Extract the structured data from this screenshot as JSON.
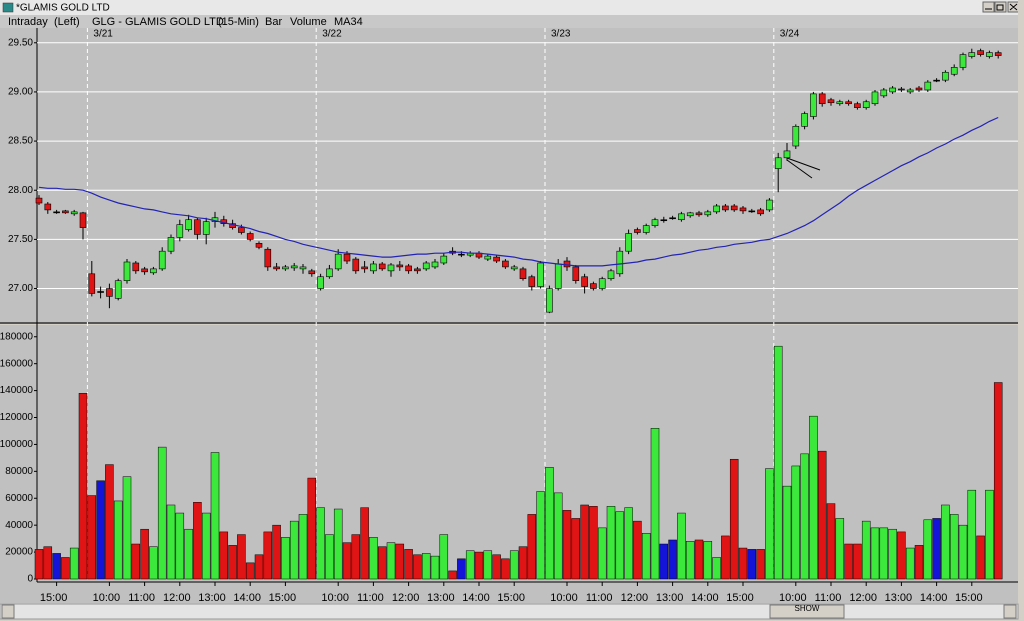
{
  "window_title": "*GLAMIS GOLD LTD",
  "header": [
    "Intraday",
    "(Left)",
    "GLG - GLAMIS GOLD LTD",
    "(15-Min)",
    "Bar"
  ],
  "scrollbar_label": "SHOW",
  "chart_data": [
    {
      "type": "candlestick",
      "up_color": "#3ce83c",
      "down_color": "#e01414",
      "grid": true,
      "ylim": [
        26.68,
        29.63
      ],
      "yticks": [
        {
          "value": 27,
          "label": "27.00"
        },
        {
          "value": 27.5,
          "label": "27.50"
        },
        {
          "value": 28,
          "label": "28.00"
        },
        {
          "value": 28.5,
          "label": "28.50"
        },
        {
          "value": 29,
          "label": "29.00"
        },
        {
          "value": 29.5,
          "label": "29.50"
        }
      ],
      "day_labels": [
        null,
        null,
        null,
        null,
        null,
        null,
        "3/21",
        null,
        null,
        null,
        null,
        null,
        null,
        null,
        null,
        null,
        null,
        null,
        null,
        null,
        null,
        null,
        null,
        null,
        null,
        null,
        null,
        null,
        null,
        null,
        null,
        null,
        "3/22",
        null,
        null,
        null,
        null,
        null,
        null,
        null,
        null,
        null,
        null,
        null,
        null,
        null,
        null,
        null,
        null,
        null,
        null,
        null,
        null,
        null,
        null,
        null,
        null,
        null,
        "3/23",
        null,
        null,
        null,
        null,
        null,
        null,
        null,
        null,
        null,
        null,
        null,
        null,
        null,
        null,
        null,
        null,
        null,
        null,
        null,
        null,
        null,
        null,
        null,
        null,
        null,
        "3/24",
        null,
        null,
        null,
        null,
        null,
        null,
        null,
        null,
        null,
        null,
        null,
        null,
        null,
        null,
        null,
        null,
        null,
        null,
        null,
        null,
        null,
        null,
        null,
        null,
        null
      ],
      "open": [
        27.92,
        27.86,
        27.78,
        27.79,
        27.76,
        27.77,
        27.15,
        26.97,
        27.0,
        26.9,
        27.08,
        27.26,
        27.2,
        27.16,
        27.2,
        27.38,
        27.52,
        27.6,
        27.7,
        27.55,
        27.68,
        27.7,
        27.66,
        27.62,
        27.56,
        27.46,
        27.4,
        27.22,
        27.2,
        27.21,
        27.2,
        27.18,
        27.0,
        27.12,
        27.2,
        27.35,
        27.3,
        27.22,
        27.18,
        27.25,
        27.18,
        27.24,
        27.23,
        27.2,
        27.2,
        27.22,
        27.26,
        27.38,
        27.35,
        27.34,
        27.36,
        27.3,
        27.32,
        27.28,
        27.2,
        27.2,
        27.12,
        27.02,
        26.76,
        27.0,
        27.28,
        27.22,
        27.12,
        27.05,
        27.0,
        27.1,
        27.15,
        27.38,
        27.6,
        27.57,
        27.64,
        27.7,
        27.72,
        27.7,
        27.74,
        27.77,
        27.75,
        27.78,
        27.84,
        27.84,
        27.82,
        27.79,
        27.8,
        27.8,
        28.22,
        28.33,
        28.45,
        28.65,
        28.75,
        28.98,
        28.92,
        28.88,
        28.9,
        28.88,
        28.84,
        28.88,
        28.96,
        29.0,
        29.03,
        29.0,
        29.04,
        29.02,
        29.12,
        29.12,
        29.18,
        29.25,
        29.36,
        29.42,
        29.36,
        29.4
      ],
      "high": [
        27.95,
        27.88,
        27.8,
        27.8,
        27.8,
        27.78,
        27.28,
        27.02,
        27.05,
        27.1,
        27.3,
        27.28,
        27.22,
        27.22,
        27.42,
        27.55,
        27.7,
        27.75,
        27.72,
        27.72,
        27.78,
        27.74,
        27.7,
        27.65,
        27.58,
        27.48,
        27.42,
        27.26,
        27.24,
        27.26,
        27.25,
        27.2,
        27.15,
        27.24,
        27.4,
        27.38,
        27.32,
        27.28,
        27.28,
        27.27,
        27.26,
        27.28,
        27.25,
        27.22,
        27.28,
        27.3,
        27.36,
        27.42,
        27.38,
        27.38,
        27.38,
        27.35,
        27.34,
        27.3,
        27.24,
        27.22,
        27.14,
        27.28,
        27.03,
        27.3,
        27.32,
        27.24,
        27.15,
        27.07,
        27.12,
        27.2,
        27.42,
        27.6,
        27.62,
        27.66,
        27.72,
        27.73,
        27.74,
        27.78,
        27.78,
        27.79,
        27.8,
        27.86,
        27.86,
        27.86,
        27.84,
        27.81,
        27.82,
        27.92,
        28.38,
        28.48,
        28.67,
        28.8,
        29.0,
        29.0,
        28.94,
        28.92,
        28.92,
        28.9,
        28.92,
        29.02,
        29.04,
        29.06,
        29.05,
        29.04,
        29.06,
        29.12,
        29.14,
        29.22,
        29.28,
        29.4,
        29.44,
        29.44,
        29.42,
        29.42
      ],
      "low": [
        27.85,
        27.76,
        27.76,
        27.76,
        27.74,
        27.5,
        26.92,
        26.9,
        26.8,
        26.88,
        27.05,
        27.15,
        27.14,
        27.14,
        27.18,
        27.35,
        27.48,
        27.58,
        27.5,
        27.45,
        27.62,
        27.63,
        27.6,
        27.55,
        27.48,
        27.4,
        27.18,
        27.18,
        27.18,
        27.18,
        27.15,
        27.12,
        26.98,
        27.1,
        27.18,
        27.25,
        27.15,
        27.16,
        27.15,
        27.18,
        27.12,
        27.18,
        27.15,
        27.15,
        27.18,
        27.2,
        27.24,
        27.34,
        27.32,
        27.32,
        27.3,
        27.28,
        27.26,
        27.2,
        27.18,
        27.08,
        26.98,
        27.0,
        26.75,
        26.98,
        27.18,
        27.05,
        26.95,
        26.98,
        26.98,
        27.08,
        27.12,
        27.35,
        27.55,
        27.55,
        27.62,
        27.67,
        27.7,
        27.68,
        27.72,
        27.73,
        27.73,
        27.76,
        27.78,
        27.78,
        27.76,
        27.77,
        27.74,
        27.78,
        27.98,
        28.3,
        28.42,
        28.62,
        28.72,
        28.85,
        28.86,
        28.86,
        28.86,
        28.82,
        28.82,
        28.86,
        28.94,
        28.98,
        29.0,
        28.98,
        29.0,
        29.0,
        29.1,
        29.1,
        29.16,
        29.22,
        29.34,
        29.36,
        29.34,
        29.34
      ],
      "close": [
        27.87,
        27.8,
        27.78,
        27.77,
        27.78,
        27.62,
        26.95,
        26.97,
        26.92,
        27.08,
        27.27,
        27.18,
        27.17,
        27.2,
        27.38,
        27.52,
        27.65,
        27.7,
        27.55,
        27.68,
        27.72,
        27.66,
        27.62,
        27.57,
        27.5,
        27.42,
        27.22,
        27.2,
        27.22,
        27.23,
        27.22,
        27.15,
        27.12,
        27.2,
        27.35,
        27.28,
        27.18,
        27.2,
        27.25,
        27.2,
        27.24,
        27.22,
        27.18,
        27.18,
        27.26,
        27.27,
        27.33,
        27.36,
        27.35,
        27.36,
        27.32,
        27.33,
        27.28,
        27.22,
        27.22,
        27.1,
        27.02,
        27.26,
        27.0,
        27.25,
        27.22,
        27.08,
        27.02,
        27.0,
        27.1,
        27.18,
        27.38,
        27.56,
        27.57,
        27.64,
        27.7,
        27.7,
        27.72,
        27.76,
        27.77,
        27.75,
        27.78,
        27.84,
        27.8,
        27.8,
        27.79,
        27.79,
        27.76,
        27.9,
        28.33,
        28.4,
        28.65,
        28.78,
        28.98,
        28.88,
        28.89,
        28.9,
        28.88,
        28.84,
        28.9,
        29.0,
        29.02,
        29.04,
        29.02,
        29.02,
        29.02,
        29.1,
        29.12,
        29.2,
        29.25,
        29.38,
        29.4,
        29.38,
        29.4,
        29.37
      ],
      "series": [
        {
          "name": "MA34",
          "color": "#2323b4",
          "values": [
            28.03,
            28.02,
            28.02,
            28.01,
            28.01,
            28.0,
            27.97,
            27.93,
            27.9,
            27.87,
            27.85,
            27.83,
            27.81,
            27.8,
            27.78,
            27.76,
            27.75,
            27.74,
            27.72,
            27.71,
            27.69,
            27.67,
            27.65,
            27.63,
            27.61,
            27.58,
            27.56,
            27.53,
            27.5,
            27.48,
            27.45,
            27.43,
            27.41,
            27.39,
            27.37,
            27.36,
            27.35,
            27.34,
            27.33,
            27.32,
            27.32,
            27.33,
            27.34,
            27.35,
            27.35,
            27.36,
            27.36,
            27.37,
            27.37,
            27.36,
            27.36,
            27.35,
            27.34,
            27.33,
            27.32,
            27.3,
            27.29,
            27.27,
            27.26,
            27.25,
            27.24,
            27.23,
            27.23,
            27.23,
            27.23,
            27.24,
            27.25,
            27.26,
            27.27,
            27.29,
            27.3,
            27.32,
            27.34,
            27.35,
            27.37,
            27.39,
            27.4,
            27.42,
            27.43,
            27.45,
            27.46,
            27.47,
            27.49,
            27.5,
            27.53,
            27.56,
            27.6,
            27.64,
            27.69,
            27.75,
            27.81,
            27.87,
            27.94,
            28.0,
            28.05,
            28.1,
            28.15,
            28.2,
            28.25,
            28.29,
            28.34,
            28.38,
            28.43,
            28.47,
            28.52,
            28.56,
            28.61,
            28.65,
            28.7,
            28.74
          ]
        }
      ]
    },
    {
      "type": "bar",
      "up_color": "#3ce83c",
      "down_color": "#e01414",
      "flat_color": "#1414d8",
      "ylim": [
        0,
        188000
      ],
      "yticks": [
        0,
        20000,
        40000,
        60000,
        80000,
        100000,
        120000,
        140000,
        160000,
        180000
      ],
      "categories": [
        null,
        null,
        "15:00",
        null,
        null,
        null,
        null,
        null,
        "10:00",
        null,
        null,
        null,
        "11:00",
        null,
        null,
        null,
        "12:00",
        null,
        null,
        null,
        "13:00",
        null,
        null,
        null,
        "14:00",
        null,
        null,
        null,
        "15:00",
        null,
        null,
        null,
        null,
        null,
        "10:00",
        null,
        null,
        null,
        "11:00",
        null,
        null,
        null,
        "12:00",
        null,
        null,
        null,
        "13:00",
        null,
        null,
        null,
        "14:00",
        null,
        null,
        null,
        "15:00",
        null,
        null,
        null,
        null,
        null,
        "10:00",
        null,
        null,
        null,
        "11:00",
        null,
        null,
        null,
        "12:00",
        null,
        null,
        null,
        "13:00",
        null,
        null,
        null,
        "14:00",
        null,
        null,
        null,
        "15:00",
        null,
        null,
        null,
        null,
        null,
        "10:00",
        null,
        null,
        null,
        "11:00",
        null,
        null,
        null,
        "12:00",
        null,
        null,
        null,
        "13:00",
        null,
        null,
        null,
        "14:00",
        null,
        null,
        null,
        "15:00",
        null,
        null,
        null
      ],
      "series": [
        {
          "name": "Volume",
          "values": [
            22000,
            24000,
            19000,
            16000,
            23000,
            138000,
            62000,
            73000,
            85000,
            58000,
            76000,
            26000,
            37000,
            24000,
            98000,
            55000,
            49000,
            37000,
            57000,
            49000,
            94000,
            35000,
            25000,
            33000,
            12000,
            18000,
            35000,
            40000,
            31000,
            43000,
            48000,
            75000,
            53000,
            33000,
            52000,
            27000,
            33000,
            53000,
            31000,
            24000,
            27000,
            26000,
            22000,
            18000,
            19000,
            17000,
            33000,
            6000,
            15000,
            21000,
            20000,
            21000,
            18000,
            15000,
            21000,
            24000,
            48000,
            65000,
            83000,
            64000,
            51000,
            45000,
            55000,
            54000,
            38000,
            54000,
            50000,
            53000,
            43000,
            34000,
            112000,
            26000,
            29000,
            49000,
            28000,
            29000,
            28000,
            16000,
            32000,
            89000,
            23000,
            22000,
            22000,
            82000,
            173000,
            69000,
            84000,
            93000,
            121000,
            95000,
            56000,
            45000,
            26000,
            26000,
            43000,
            38000,
            38000,
            37000,
            35000,
            23000,
            25000,
            44000,
            45000,
            55000,
            48000,
            40000,
            66000,
            32000,
            66000,
            146000
          ]
        }
      ]
    }
  ]
}
